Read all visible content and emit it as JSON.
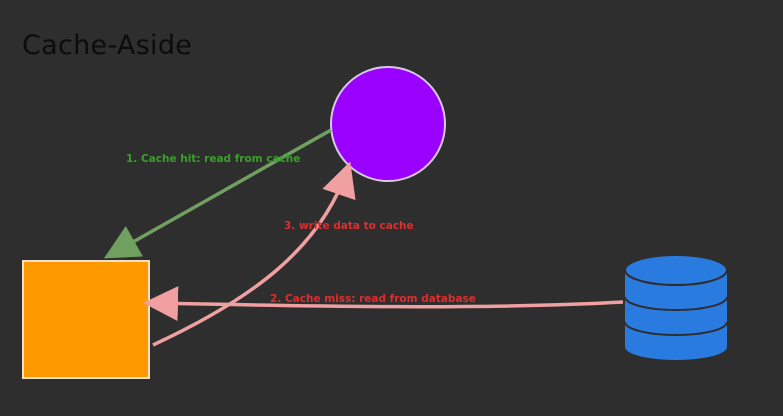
{
  "title": "Cache-Aside",
  "nodes": {
    "cache": {
      "color": "#9900ff"
    },
    "application": {
      "color": "#ff9900"
    },
    "database": {
      "color": "#2a7be0"
    }
  },
  "edges": {
    "cache_hit": {
      "label": "1. Cache hit: read from cache",
      "color": "#6fa060",
      "label_color": "#3aa02a"
    },
    "cache_miss": {
      "label": "2. Cache miss: read from database",
      "color": "#f0a0a0",
      "label_color": "#e02d2d"
    },
    "write_cache": {
      "label": "3. write data to cache",
      "color": "#f0a0a0",
      "label_color": "#e02d2d"
    }
  }
}
